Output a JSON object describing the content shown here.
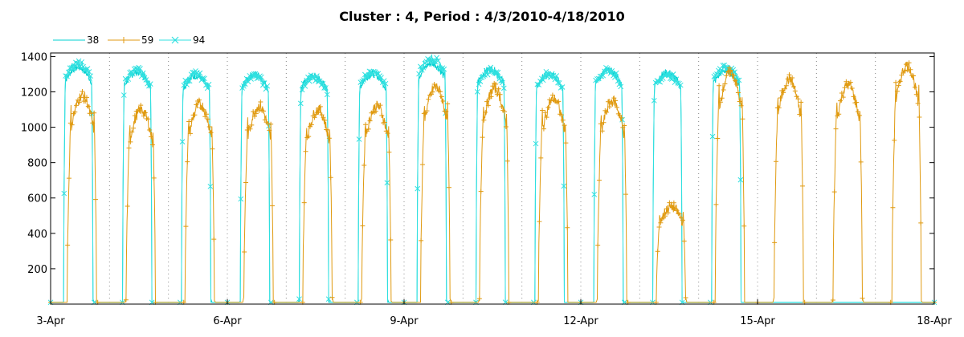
{
  "chart_data": {
    "type": "line",
    "title": "Cluster : 4, Period : 4/3/2010-4/18/2010",
    "xlabel": "",
    "ylabel": "",
    "x_ticks": [
      "3-Apr",
      "6-Apr",
      "9-Apr",
      "12-Apr",
      "15-Apr",
      "18-Apr"
    ],
    "y_ticks": [
      200,
      400,
      600,
      800,
      1000,
      1200,
      1400
    ],
    "xlim": [
      0,
      15
    ],
    "ylim": [
      0,
      1420
    ],
    "grid": "vertical dotted at day boundaries",
    "legend_position": "top-left",
    "colors": {
      "s38": "#00d0d0",
      "s59": "#e09a10",
      "s94": "#30e0e0",
      "overlap": "#88c040"
    },
    "series": [
      {
        "name": "38",
        "marker": "none",
        "color": "#00d0d0",
        "days": [
          {
            "day": 0,
            "peak": 1340
          },
          {
            "day": 1,
            "peak": 1310
          },
          {
            "day": 2,
            "peak": 1290
          },
          {
            "day": 3,
            "peak": 1300
          },
          {
            "day": 4,
            "peak": 1290
          },
          {
            "day": 5,
            "peak": 1300
          },
          {
            "day": 6,
            "peak": 1360
          },
          {
            "day": 7,
            "peak": 1330
          },
          {
            "day": 8,
            "peak": 1300
          },
          {
            "day": 9,
            "peak": 1320
          },
          {
            "day": 10,
            "peak": 1310
          },
          {
            "day": 11,
            "peak": 1320
          }
        ]
      },
      {
        "name": "59",
        "marker": "plus",
        "color": "#e09a10",
        "days": [
          {
            "day": 0,
            "peak": 1180
          },
          {
            "day": 1,
            "peak": 1100
          },
          {
            "day": 2,
            "peak": 1130
          },
          {
            "day": 3,
            "peak": 1120
          },
          {
            "day": 4,
            "peak": 1100
          },
          {
            "day": 5,
            "peak": 1120
          },
          {
            "day": 6,
            "peak": 1230
          },
          {
            "day": 7,
            "peak": 1220
          },
          {
            "day": 8,
            "peak": 1160
          },
          {
            "day": 9,
            "peak": 1150
          },
          {
            "day": 10,
            "peak": 550
          },
          {
            "day": 11,
            "peak": 1310
          },
          {
            "day": 12,
            "peak": 1270
          },
          {
            "day": 13,
            "peak": 1240
          },
          {
            "day": 14,
            "peak": 1350
          }
        ]
      },
      {
        "name": "94",
        "marker": "x",
        "color": "#30e0e0",
        "days": [
          {
            "day": 0,
            "peak": 1360
          },
          {
            "day": 1,
            "peak": 1320
          },
          {
            "day": 2,
            "peak": 1300
          },
          {
            "day": 3,
            "peak": 1290
          },
          {
            "day": 4,
            "peak": 1280
          },
          {
            "day": 5,
            "peak": 1310
          },
          {
            "day": 6,
            "peak": 1390
          },
          {
            "day": 7,
            "peak": 1320
          },
          {
            "day": 8,
            "peak": 1300
          },
          {
            "day": 9,
            "peak": 1320
          },
          {
            "day": 10,
            "peak": 1300
          },
          {
            "day": 11,
            "peak": 1340
          }
        ]
      }
    ]
  }
}
